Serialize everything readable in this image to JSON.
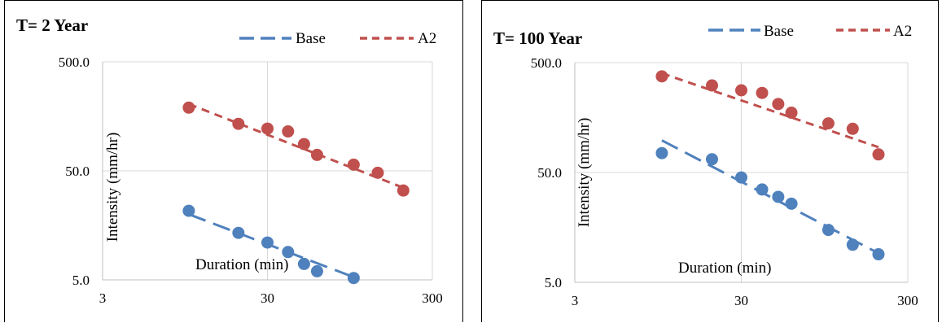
{
  "chart_data": [
    {
      "type": "scatter",
      "title": "T= 2 Year",
      "xlabel": "Duration (min)",
      "ylabel": "Intensity (mm/hr)",
      "x_scale": "log",
      "y_scale": "log",
      "xlim": [
        3,
        300
      ],
      "ylim": [
        5,
        500
      ],
      "x_ticks": [
        "3",
        "30",
        "300"
      ],
      "y_ticks": [
        "500.0",
        "50.0",
        "5.0"
      ],
      "grid": true,
      "legend_position": "top-right",
      "series": [
        {
          "name": "Base",
          "color": "#4f81bd",
          "points": [
            [
              10,
              21.5
            ],
            [
              20,
              13.5
            ],
            [
              30,
              11
            ],
            [
              40,
              9
            ],
            [
              50,
              7
            ],
            [
              60,
              6
            ],
            [
              100,
              5.2
            ]
          ],
          "trend": [
            [
              10,
              20
            ],
            [
              100,
              5.3
            ]
          ]
        },
        {
          "name": "A2",
          "color": "#c0504d",
          "points": [
            [
              10,
              190
            ],
            [
              20,
              135
            ],
            [
              30,
              122
            ],
            [
              40,
              115
            ],
            [
              50,
              88
            ],
            [
              60,
              70
            ],
            [
              100,
              57
            ],
            [
              140,
              48
            ],
            [
              200,
              33
            ]
          ],
          "trend": [
            [
              10,
              205
            ],
            [
              200,
              35
            ]
          ]
        }
      ]
    },
    {
      "type": "scatter",
      "title": "T= 100 Year",
      "xlabel": "Duration (min)",
      "ylabel": "Intensity (mm/hr)",
      "x_scale": "log",
      "y_scale": "log",
      "xlim": [
        3,
        300
      ],
      "ylim": [
        5,
        500
      ],
      "x_ticks": [
        "3",
        "30",
        "300"
      ],
      "y_ticks": [
        "500.0",
        "50.0",
        "5.0"
      ],
      "grid": true,
      "legend_position": "top-right",
      "series": [
        {
          "name": "Base",
          "color": "#4f81bd",
          "points": [
            [
              10,
              75
            ],
            [
              20,
              66
            ],
            [
              30,
              45
            ],
            [
              40,
              35
            ],
            [
              50,
              30
            ],
            [
              60,
              26
            ],
            [
              100,
              15
            ],
            [
              140,
              11
            ],
            [
              200,
              9
            ]
          ],
          "trend": [
            [
              10,
              98
            ],
            [
              200,
              9.2
            ]
          ]
        },
        {
          "name": "A2",
          "color": "#c0504d",
          "points": [
            [
              10,
              375
            ],
            [
              20,
              310
            ],
            [
              30,
              280
            ],
            [
              40,
              265
            ],
            [
              50,
              210
            ],
            [
              60,
              175
            ],
            [
              100,
              140
            ],
            [
              140,
              125
            ],
            [
              200,
              73
            ]
          ],
          "trend": [
            [
              10,
              400
            ],
            [
              200,
              85
            ]
          ]
        }
      ]
    }
  ]
}
